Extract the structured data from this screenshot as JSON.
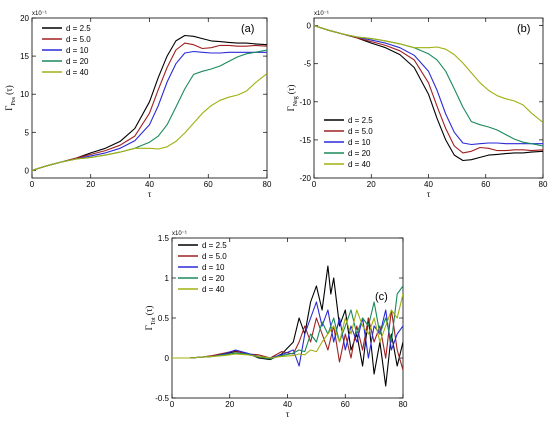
{
  "colors": {
    "d = 2.5": "#000000",
    "d = 5.0": "#a02020",
    "d = 10": "#2a2ad8",
    "d = 20": "#1a8a5a",
    "d = 40": "#a0b010"
  },
  "chart_data": [
    {
      "type": "line",
      "panel_label": "(a)",
      "xlabel": "τ",
      "ylabel_main": "Γ",
      "ylabel_sub": "Pos",
      "ylabel_arg": "(τ)",
      "exponent_note": "x10⁻¹",
      "xlim": [
        0,
        80
      ],
      "ylim": [
        -1,
        20
      ],
      "xticks": [
        "0",
        "20",
        "40",
        "60",
        "80"
      ],
      "yticks": [
        "0",
        "5",
        "10",
        "15",
        "20"
      ],
      "legend_position": "top-left",
      "series": [
        {
          "name": "d = 2.5",
          "x": [
            0,
            5,
            10,
            15,
            20,
            25,
            30,
            35,
            40,
            43,
            46,
            49,
            52,
            55,
            58,
            61,
            64,
            67,
            70,
            73,
            76,
            80
          ],
          "y": [
            0,
            0.6,
            1.1,
            1.6,
            2.3,
            2.9,
            3.8,
            5.5,
            9.0,
            12.2,
            15.0,
            17.0,
            17.7,
            17.6,
            17.3,
            17.0,
            16.9,
            16.8,
            16.7,
            16.7,
            16.6,
            16.5
          ]
        },
        {
          "name": "d = 5.0",
          "x": [
            0,
            5,
            10,
            15,
            20,
            25,
            30,
            35,
            40,
            43,
            46,
            49,
            52,
            55,
            58,
            61,
            64,
            67,
            70,
            73,
            76,
            80
          ],
          "y": [
            0,
            0.6,
            1.1,
            1.6,
            2.1,
            2.6,
            3.3,
            4.5,
            7.5,
            10.6,
            13.5,
            15.8,
            16.7,
            16.5,
            16.0,
            16.1,
            16.4,
            16.4,
            16.3,
            16.3,
            16.4,
            16.3
          ]
        },
        {
          "name": "d = 10",
          "x": [
            0,
            5,
            10,
            15,
            20,
            25,
            30,
            35,
            40,
            43,
            46,
            49,
            52,
            55,
            58,
            61,
            64,
            67,
            70,
            73,
            76,
            80
          ],
          "y": [
            0,
            0.6,
            1.1,
            1.5,
            1.9,
            2.3,
            2.9,
            3.9,
            6.0,
            8.5,
            11.6,
            14.0,
            15.4,
            15.6,
            15.5,
            15.4,
            15.4,
            15.5,
            15.5,
            15.5,
            15.5,
            15.5
          ]
        },
        {
          "name": "d = 20",
          "x": [
            0,
            5,
            10,
            15,
            20,
            25,
            30,
            35,
            40,
            43,
            46,
            49,
            52,
            55,
            58,
            61,
            64,
            67,
            70,
            73,
            76,
            80
          ],
          "y": [
            0,
            0.6,
            1.1,
            1.5,
            1.7,
            2.0,
            2.4,
            2.9,
            3.7,
            4.5,
            6.0,
            8.3,
            10.7,
            12.6,
            13.0,
            13.3,
            13.7,
            14.3,
            14.9,
            15.3,
            15.5,
            15.8
          ]
        },
        {
          "name": "d = 40",
          "x": [
            0,
            5,
            10,
            15,
            20,
            25,
            30,
            35,
            40,
            43,
            46,
            49,
            52,
            55,
            58,
            61,
            64,
            67,
            70,
            73,
            76,
            80
          ],
          "y": [
            0,
            0.6,
            1.1,
            1.5,
            1.7,
            2.0,
            2.4,
            2.9,
            2.9,
            2.8,
            3.1,
            3.8,
            4.9,
            6.2,
            7.5,
            8.5,
            9.2,
            9.6,
            9.9,
            10.4,
            11.5,
            12.7
          ]
        }
      ]
    },
    {
      "type": "line",
      "panel_label": "(b)",
      "xlabel": "τ",
      "ylabel_main": "Γ",
      "ylabel_sub": "Neg",
      "ylabel_arg": "(τ)",
      "exponent_note": "x10⁻¹",
      "xlim": [
        0,
        80
      ],
      "ylim": [
        -20,
        1
      ],
      "xticks": [
        "0",
        "20",
        "40",
        "60",
        "80"
      ],
      "yticks": [
        "0",
        "-5",
        "-10",
        "-15",
        "-20"
      ],
      "legend_position": "bottom-left",
      "series": [
        {
          "name": "d = 2.5",
          "x": [
            0,
            5,
            10,
            15,
            20,
            25,
            30,
            35,
            40,
            43,
            46,
            49,
            52,
            55,
            58,
            61,
            64,
            67,
            70,
            73,
            76,
            80
          ],
          "y": [
            0,
            -0.6,
            -1.1,
            -1.6,
            -2.3,
            -2.9,
            -3.8,
            -5.5,
            -9.0,
            -12.2,
            -15.0,
            -17.0,
            -17.7,
            -17.6,
            -17.3,
            -17.0,
            -16.9,
            -16.8,
            -16.7,
            -16.7,
            -16.6,
            -16.5
          ]
        },
        {
          "name": "d = 5.0",
          "x": [
            0,
            5,
            10,
            15,
            20,
            25,
            30,
            35,
            40,
            43,
            46,
            49,
            52,
            55,
            58,
            61,
            64,
            67,
            70,
            73,
            76,
            80
          ],
          "y": [
            0,
            -0.6,
            -1.1,
            -1.6,
            -2.1,
            -2.6,
            -3.3,
            -4.5,
            -7.5,
            -10.6,
            -13.5,
            -15.8,
            -16.7,
            -16.5,
            -16.0,
            -16.1,
            -16.4,
            -16.4,
            -16.3,
            -16.3,
            -16.4,
            -16.3
          ]
        },
        {
          "name": "d = 10",
          "x": [
            0,
            5,
            10,
            15,
            20,
            25,
            30,
            35,
            40,
            43,
            46,
            49,
            52,
            55,
            58,
            61,
            64,
            67,
            70,
            73,
            76,
            80
          ],
          "y": [
            0,
            -0.6,
            -1.1,
            -1.5,
            -1.9,
            -2.3,
            -2.9,
            -3.9,
            -6.0,
            -8.5,
            -11.6,
            -14.0,
            -15.4,
            -15.6,
            -15.5,
            -15.4,
            -15.4,
            -15.5,
            -15.5,
            -15.5,
            -15.5,
            -15.5
          ]
        },
        {
          "name": "d = 20",
          "x": [
            0,
            5,
            10,
            15,
            20,
            25,
            30,
            35,
            40,
            43,
            46,
            49,
            52,
            55,
            58,
            61,
            64,
            67,
            70,
            73,
            76,
            80
          ],
          "y": [
            0,
            -0.6,
            -1.1,
            -1.5,
            -1.7,
            -2.0,
            -2.4,
            -2.9,
            -3.7,
            -4.5,
            -6.0,
            -8.3,
            -10.7,
            -12.6,
            -13.0,
            -13.3,
            -13.7,
            -14.3,
            -14.9,
            -15.3,
            -15.5,
            -15.8
          ]
        },
        {
          "name": "d = 40",
          "x": [
            0,
            5,
            10,
            15,
            20,
            25,
            30,
            35,
            40,
            43,
            46,
            49,
            52,
            55,
            58,
            61,
            64,
            67,
            70,
            73,
            76,
            80
          ],
          "y": [
            0,
            -0.6,
            -1.1,
            -1.5,
            -1.7,
            -2.0,
            -2.4,
            -2.9,
            -2.9,
            -2.8,
            -3.1,
            -3.8,
            -4.9,
            -6.2,
            -7.5,
            -8.5,
            -9.2,
            -9.6,
            -9.9,
            -10.4,
            -11.5,
            -12.7
          ]
        }
      ]
    },
    {
      "type": "line",
      "panel_label": "(c)",
      "xlabel": "τ",
      "ylabel_main": "Γ",
      "ylabel_sub": "Tot",
      "ylabel_arg": "(τ)",
      "exponent_note": "x10⁻¹",
      "xlim": [
        0,
        80
      ],
      "ylim": [
        -0.5,
        1.5
      ],
      "xticks": [
        "0",
        "20",
        "40",
        "60",
        "80"
      ],
      "yticks": [
        "1.5",
        "1",
        "0.5",
        "0",
        "-0.5"
      ],
      "ytick_values": [
        1.5,
        1,
        0.5,
        0,
        -0.5
      ],
      "legend_position": "top-left",
      "series": [
        {
          "name": "d = 2.5",
          "x": [
            0,
            6,
            10,
            14,
            18,
            22,
            26,
            30,
            34,
            38,
            42,
            44,
            46,
            48,
            50,
            52,
            54,
            55,
            56,
            58,
            60,
            62,
            64,
            66,
            68,
            70,
            72,
            74,
            76,
            78,
            80
          ],
          "y": [
            0,
            0,
            0.01,
            0.02,
            0.05,
            0.08,
            0.06,
            0.0,
            -0.02,
            0.05,
            0.2,
            0.5,
            0.3,
            0.7,
            0.9,
            0.6,
            1.15,
            0.8,
            1.0,
            0.4,
            0.6,
            0.1,
            0.3,
            -0.1,
            0.5,
            -0.2,
            0.2,
            -0.35,
            0.3,
            -0.1,
            0.2
          ]
        },
        {
          "name": "d = 5.0",
          "x": [
            0,
            6,
            10,
            14,
            18,
            22,
            26,
            30,
            34,
            38,
            42,
            44,
            46,
            48,
            50,
            52,
            54,
            56,
            58,
            60,
            62,
            64,
            66,
            68,
            70,
            72,
            74,
            76,
            78,
            80
          ],
          "y": [
            0,
            0,
            0.01,
            0.03,
            0.06,
            0.09,
            0.05,
            0.04,
            0.0,
            0.08,
            0.05,
            0.2,
            0.4,
            0.2,
            0.5,
            0.3,
            0.1,
            0.4,
            -0.05,
            0.3,
            0.0,
            0.4,
            0.1,
            0.5,
            0.2,
            0.4,
            0.0,
            0.6,
            0.1,
            -0.15
          ]
        },
        {
          "name": "d = 10",
          "x": [
            0,
            6,
            10,
            14,
            18,
            22,
            26,
            30,
            34,
            38,
            42,
            44,
            46,
            48,
            50,
            52,
            54,
            56,
            58,
            60,
            62,
            64,
            66,
            68,
            70,
            72,
            74,
            76,
            78,
            80
          ],
          "y": [
            0,
            0,
            0.01,
            0.02,
            0.05,
            0.1,
            0.06,
            0.02,
            0.0,
            0.04,
            0.1,
            -0.1,
            0.3,
            0.5,
            0.7,
            0.4,
            0.6,
            0.2,
            0.5,
            0.1,
            0.4,
            0.2,
            0.5,
            0.0,
            0.4,
            0.3,
            0.6,
            0.1,
            0.3,
            0.4
          ]
        },
        {
          "name": "d = 20",
          "x": [
            0,
            6,
            10,
            14,
            18,
            22,
            26,
            30,
            34,
            38,
            42,
            44,
            46,
            48,
            50,
            52,
            54,
            56,
            58,
            60,
            62,
            64,
            66,
            68,
            70,
            72,
            74,
            76,
            78,
            80
          ],
          "y": [
            0,
            0,
            0.01,
            0.02,
            0.04,
            0.06,
            0.05,
            0.01,
            -0.01,
            0.03,
            0.06,
            0.1,
            0.08,
            0.3,
            0.2,
            0.45,
            0.3,
            0.5,
            0.2,
            0.4,
            0.6,
            0.3,
            0.5,
            0.4,
            0.7,
            0.3,
            0.5,
            0.2,
            0.8,
            0.9
          ]
        },
        {
          "name": "d = 40",
          "x": [
            0,
            6,
            10,
            14,
            18,
            22,
            26,
            30,
            34,
            38,
            42,
            44,
            46,
            48,
            50,
            52,
            54,
            56,
            58,
            60,
            62,
            64,
            66,
            68,
            70,
            72,
            74,
            76,
            78,
            80
          ],
          "y": [
            0,
            0,
            0.01,
            0.02,
            0.03,
            0.05,
            0.04,
            0.02,
            0.0,
            0.02,
            0.03,
            0.05,
            0.04,
            0.1,
            0.08,
            0.2,
            0.3,
            0.4,
            0.2,
            0.5,
            0.3,
            0.6,
            0.4,
            0.3,
            0.5,
            0.2,
            0.4,
            0.6,
            0.5,
            0.8
          ]
        }
      ]
    }
  ]
}
